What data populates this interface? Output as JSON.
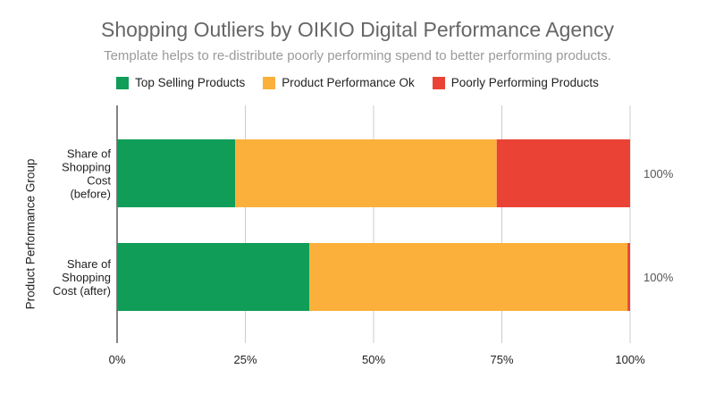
{
  "chart_data": {
    "type": "bar",
    "orientation": "horizontal",
    "stacked": "percent",
    "title": "Shopping Outliers by OIKIO Digital Performance Agency",
    "subtitle": "Template helps to re-distribute poorly performing spend to better performing products.",
    "ylabel": "Product Performance Group",
    "xlabel": "",
    "categories": [
      [
        "Share of",
        "Shopping",
        "Cost",
        "(before)"
      ],
      [
        "Share of",
        "Shopping",
        "Cost (after)"
      ]
    ],
    "series": [
      {
        "name": "Top Selling Products",
        "color": "#0f9d58",
        "values": [
          23,
          37.5
        ]
      },
      {
        "name": "Product Performance Ok",
        "color": "#fbb03b",
        "values": [
          51,
          62
        ]
      },
      {
        "name": "Poorly Performing Products",
        "color": "#ea4335",
        "values": [
          26,
          0.5
        ]
      }
    ],
    "totals": [
      "100%",
      "100%"
    ],
    "xticks": [
      "0%",
      "25%",
      "50%",
      "75%",
      "100%"
    ],
    "xlim": [
      0,
      100
    ],
    "grid": true,
    "legend_position": "top"
  }
}
